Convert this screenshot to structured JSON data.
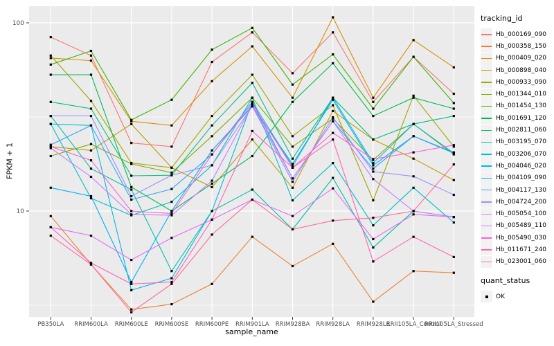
{
  "chart_data": {
    "type": "line",
    "title": "",
    "xlabel": "sample_name",
    "ylabel": "FPKM + 1",
    "y_scale": "log10",
    "y_ticks": [
      "10",
      "100"
    ],
    "y_tick_values": [
      10,
      100
    ],
    "y_minor_values": [
      3.162,
      31.62
    ],
    "ylim": [
      2.7,
      122
    ],
    "grid": true,
    "legend_position": "right",
    "panel_bg": "#EBEBEB",
    "grid_color": "#FFFFFF",
    "point_color": "#000000",
    "point_shape": "square",
    "axis_text_color": "#4D4D4D",
    "categories": [
      "PB350LA",
      "RRIM600LA",
      "RRIM600LE",
      "RRIM600SE",
      "RRIM600PE",
      "RRIM901LA",
      "RRIM928BA",
      "RRIM928LA",
      "RRIM928LE",
      "RRII105LA_Control",
      "RRII105LA_Stressed"
    ],
    "series": [
      {
        "name": "Hb_000169_090",
        "color": "#F8766D",
        "values": [
          84,
          67,
          23,
          22,
          62,
          89,
          54,
          89,
          38,
          66,
          42
        ]
      },
      {
        "name": "Hb_000358_150",
        "color": "#EA8331",
        "values": [
          9.4,
          5.2,
          3.0,
          3.2,
          4.1,
          7.3,
          5.1,
          6.7,
          3.3,
          4.8,
          4.7
        ]
      },
      {
        "name": "Hb_000409_020",
        "color": "#D89000",
        "values": [
          65,
          63,
          30,
          28.5,
          49,
          75,
          40,
          107,
          40,
          81,
          58
        ]
      },
      {
        "name": "Hb_000898_040",
        "color": "#C09B00",
        "values": [
          22,
          21,
          29,
          17,
          13.4,
          24,
          13.3,
          34,
          24,
          19,
          14.6
        ]
      },
      {
        "name": "Hb_000933_090",
        "color": "#A3A500",
        "values": [
          67,
          38.5,
          18,
          17,
          32,
          53,
          25,
          36.5,
          11.4,
          41,
          22
        ]
      },
      {
        "name": "Hb_001344_010",
        "color": "#7CAE00",
        "values": [
          19.6,
          22.7,
          17.8,
          16,
          25,
          40,
          22,
          31,
          18.7,
          29,
          20
        ]
      },
      {
        "name": "Hb_001454_130",
        "color": "#39B600",
        "values": [
          60,
          71,
          30.5,
          39,
          72,
          94,
          47,
          68,
          35,
          66,
          37.5
        ]
      },
      {
        "name": "Hb_001691_120",
        "color": "#00BB4E",
        "values": [
          53,
          53,
          13.4,
          10,
          14,
          19.6,
          38,
          61,
          32,
          40,
          35
        ]
      },
      {
        "name": "Hb_002811_060",
        "color": "#00BF7D",
        "values": [
          38,
          35,
          15.4,
          15.5,
          28.5,
          48,
          19,
          40,
          24,
          29,
          32
        ]
      },
      {
        "name": "Hb_003195_070",
        "color": "#00C1A3",
        "values": [
          32,
          16.8,
          13,
          4.8,
          10,
          13,
          8,
          15,
          6.4,
          10,
          9.3
        ]
      },
      {
        "name": "Hb_003206_070",
        "color": "#00BFC4",
        "values": [
          29,
          11.7,
          9.5,
          11.2,
          17.5,
          40,
          11.4,
          18,
          8.4,
          13.3,
          8.7
        ]
      },
      {
        "name": "Hb_004046_020",
        "color": "#00BAE0",
        "values": [
          29,
          28.5,
          3.8,
          4.4,
          10,
          38,
          17.3,
          40,
          18,
          29,
          20.3
        ]
      },
      {
        "name": "Hb_004109_090",
        "color": "#00B0F6",
        "values": [
          13.3,
          12,
          4.2,
          10,
          21,
          36,
          17.8,
          39,
          17.5,
          25,
          20.5
        ]
      },
      {
        "name": "Hb_004117_130",
        "color": "#35A2FF",
        "values": [
          22.5,
          28.5,
          11.5,
          13.1,
          20,
          38,
          14.9,
          30,
          16.8,
          25,
          20.3
        ]
      },
      {
        "name": "Hb_004724_200",
        "color": "#9590FF",
        "values": [
          32,
          32,
          12,
          15.5,
          17.5,
          36,
          14.3,
          31.5,
          16.2,
          15.3,
          12.2
        ]
      },
      {
        "name": "Hb_005054_100",
        "color": "#C77CFF",
        "values": [
          21.6,
          15.2,
          9.6,
          9.5,
          14.5,
          36.5,
          14.9,
          30,
          14.8,
          10,
          9.3
        ]
      },
      {
        "name": "Hb_005489_110",
        "color": "#E76BF3",
        "values": [
          8.2,
          7.4,
          5.5,
          7.2,
          9,
          11.5,
          9.4,
          13.2,
          7.1,
          9.6,
          9.3
        ]
      },
      {
        "name": "Hb_005490_030",
        "color": "#FA62DB",
        "values": [
          22,
          18.6,
          10,
          9.7,
          20,
          37,
          17,
          26,
          18.9,
          20.5,
          22.4
        ]
      },
      {
        "name": "Hb_011671_240",
        "color": "#FF62BC",
        "values": [
          8.2,
          5.3,
          4.1,
          4.2,
          9,
          26.6,
          17,
          24,
          5.4,
          7.3,
          5.7
        ]
      },
      {
        "name": "Hb_023001_060",
        "color": "#FF6A98",
        "values": [
          7.4,
          5.2,
          2.9,
          4.1,
          7.5,
          11.5,
          8,
          8.9,
          9.2,
          10,
          17.7
        ]
      }
    ],
    "legend": {
      "color_title": "tracking_id",
      "shape_title": "quant_status",
      "shape_items": [
        {
          "label": "OK"
        }
      ]
    }
  }
}
